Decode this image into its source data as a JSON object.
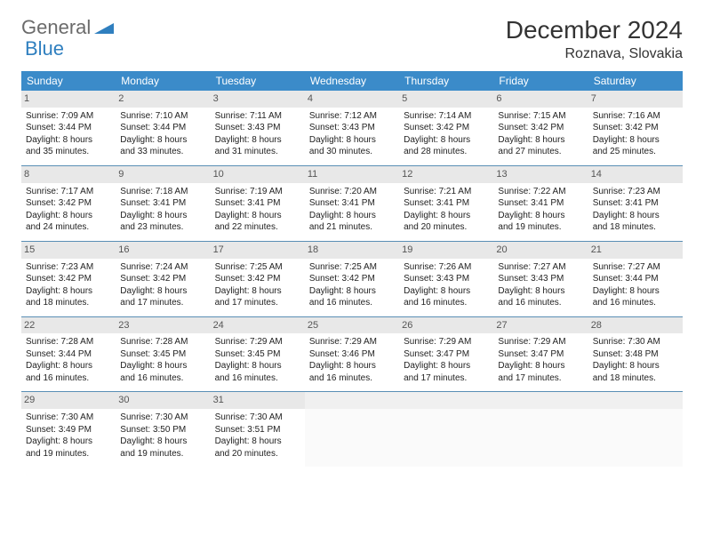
{
  "logo": {
    "text1": "General",
    "text2": "Blue"
  },
  "title": "December 2024",
  "location": "Roznava, Slovakia",
  "colors": {
    "header_bg": "#3b8bc9",
    "header_fg": "#ffffff",
    "daynum_bg": "#e8e8e8",
    "border": "#5a8fb5",
    "logo_gray": "#6b6b6b",
    "logo_blue": "#2f7fbf"
  },
  "day_headers": [
    "Sunday",
    "Monday",
    "Tuesday",
    "Wednesday",
    "Thursday",
    "Friday",
    "Saturday"
  ],
  "weeks": [
    [
      {
        "n": "1",
        "sr": "Sunrise: 7:09 AM",
        "ss": "Sunset: 3:44 PM",
        "d1": "Daylight: 8 hours",
        "d2": "and 35 minutes."
      },
      {
        "n": "2",
        "sr": "Sunrise: 7:10 AM",
        "ss": "Sunset: 3:44 PM",
        "d1": "Daylight: 8 hours",
        "d2": "and 33 minutes."
      },
      {
        "n": "3",
        "sr": "Sunrise: 7:11 AM",
        "ss": "Sunset: 3:43 PM",
        "d1": "Daylight: 8 hours",
        "d2": "and 31 minutes."
      },
      {
        "n": "4",
        "sr": "Sunrise: 7:12 AM",
        "ss": "Sunset: 3:43 PM",
        "d1": "Daylight: 8 hours",
        "d2": "and 30 minutes."
      },
      {
        "n": "5",
        "sr": "Sunrise: 7:14 AM",
        "ss": "Sunset: 3:42 PM",
        "d1": "Daylight: 8 hours",
        "d2": "and 28 minutes."
      },
      {
        "n": "6",
        "sr": "Sunrise: 7:15 AM",
        "ss": "Sunset: 3:42 PM",
        "d1": "Daylight: 8 hours",
        "d2": "and 27 minutes."
      },
      {
        "n": "7",
        "sr": "Sunrise: 7:16 AM",
        "ss": "Sunset: 3:42 PM",
        "d1": "Daylight: 8 hours",
        "d2": "and 25 minutes."
      }
    ],
    [
      {
        "n": "8",
        "sr": "Sunrise: 7:17 AM",
        "ss": "Sunset: 3:42 PM",
        "d1": "Daylight: 8 hours",
        "d2": "and 24 minutes."
      },
      {
        "n": "9",
        "sr": "Sunrise: 7:18 AM",
        "ss": "Sunset: 3:41 PM",
        "d1": "Daylight: 8 hours",
        "d2": "and 23 minutes."
      },
      {
        "n": "10",
        "sr": "Sunrise: 7:19 AM",
        "ss": "Sunset: 3:41 PM",
        "d1": "Daylight: 8 hours",
        "d2": "and 22 minutes."
      },
      {
        "n": "11",
        "sr": "Sunrise: 7:20 AM",
        "ss": "Sunset: 3:41 PM",
        "d1": "Daylight: 8 hours",
        "d2": "and 21 minutes."
      },
      {
        "n": "12",
        "sr": "Sunrise: 7:21 AM",
        "ss": "Sunset: 3:41 PM",
        "d1": "Daylight: 8 hours",
        "d2": "and 20 minutes."
      },
      {
        "n": "13",
        "sr": "Sunrise: 7:22 AM",
        "ss": "Sunset: 3:41 PM",
        "d1": "Daylight: 8 hours",
        "d2": "and 19 minutes."
      },
      {
        "n": "14",
        "sr": "Sunrise: 7:23 AM",
        "ss": "Sunset: 3:41 PM",
        "d1": "Daylight: 8 hours",
        "d2": "and 18 minutes."
      }
    ],
    [
      {
        "n": "15",
        "sr": "Sunrise: 7:23 AM",
        "ss": "Sunset: 3:42 PM",
        "d1": "Daylight: 8 hours",
        "d2": "and 18 minutes."
      },
      {
        "n": "16",
        "sr": "Sunrise: 7:24 AM",
        "ss": "Sunset: 3:42 PM",
        "d1": "Daylight: 8 hours",
        "d2": "and 17 minutes."
      },
      {
        "n": "17",
        "sr": "Sunrise: 7:25 AM",
        "ss": "Sunset: 3:42 PM",
        "d1": "Daylight: 8 hours",
        "d2": "and 17 minutes."
      },
      {
        "n": "18",
        "sr": "Sunrise: 7:25 AM",
        "ss": "Sunset: 3:42 PM",
        "d1": "Daylight: 8 hours",
        "d2": "and 16 minutes."
      },
      {
        "n": "19",
        "sr": "Sunrise: 7:26 AM",
        "ss": "Sunset: 3:43 PM",
        "d1": "Daylight: 8 hours",
        "d2": "and 16 minutes."
      },
      {
        "n": "20",
        "sr": "Sunrise: 7:27 AM",
        "ss": "Sunset: 3:43 PM",
        "d1": "Daylight: 8 hours",
        "d2": "and 16 minutes."
      },
      {
        "n": "21",
        "sr": "Sunrise: 7:27 AM",
        "ss": "Sunset: 3:44 PM",
        "d1": "Daylight: 8 hours",
        "d2": "and 16 minutes."
      }
    ],
    [
      {
        "n": "22",
        "sr": "Sunrise: 7:28 AM",
        "ss": "Sunset: 3:44 PM",
        "d1": "Daylight: 8 hours",
        "d2": "and 16 minutes."
      },
      {
        "n": "23",
        "sr": "Sunrise: 7:28 AM",
        "ss": "Sunset: 3:45 PM",
        "d1": "Daylight: 8 hours",
        "d2": "and 16 minutes."
      },
      {
        "n": "24",
        "sr": "Sunrise: 7:29 AM",
        "ss": "Sunset: 3:45 PM",
        "d1": "Daylight: 8 hours",
        "d2": "and 16 minutes."
      },
      {
        "n": "25",
        "sr": "Sunrise: 7:29 AM",
        "ss": "Sunset: 3:46 PM",
        "d1": "Daylight: 8 hours",
        "d2": "and 16 minutes."
      },
      {
        "n": "26",
        "sr": "Sunrise: 7:29 AM",
        "ss": "Sunset: 3:47 PM",
        "d1": "Daylight: 8 hours",
        "d2": "and 17 minutes."
      },
      {
        "n": "27",
        "sr": "Sunrise: 7:29 AM",
        "ss": "Sunset: 3:47 PM",
        "d1": "Daylight: 8 hours",
        "d2": "and 17 minutes."
      },
      {
        "n": "28",
        "sr": "Sunrise: 7:30 AM",
        "ss": "Sunset: 3:48 PM",
        "d1": "Daylight: 8 hours",
        "d2": "and 18 minutes."
      }
    ],
    [
      {
        "n": "29",
        "sr": "Sunrise: 7:30 AM",
        "ss": "Sunset: 3:49 PM",
        "d1": "Daylight: 8 hours",
        "d2": "and 19 minutes."
      },
      {
        "n": "30",
        "sr": "Sunrise: 7:30 AM",
        "ss": "Sunset: 3:50 PM",
        "d1": "Daylight: 8 hours",
        "d2": "and 19 minutes."
      },
      {
        "n": "31",
        "sr": "Sunrise: 7:30 AM",
        "ss": "Sunset: 3:51 PM",
        "d1": "Daylight: 8 hours",
        "d2": "and 20 minutes."
      },
      {
        "empty": true
      },
      {
        "empty": true
      },
      {
        "empty": true
      },
      {
        "empty": true
      }
    ]
  ]
}
